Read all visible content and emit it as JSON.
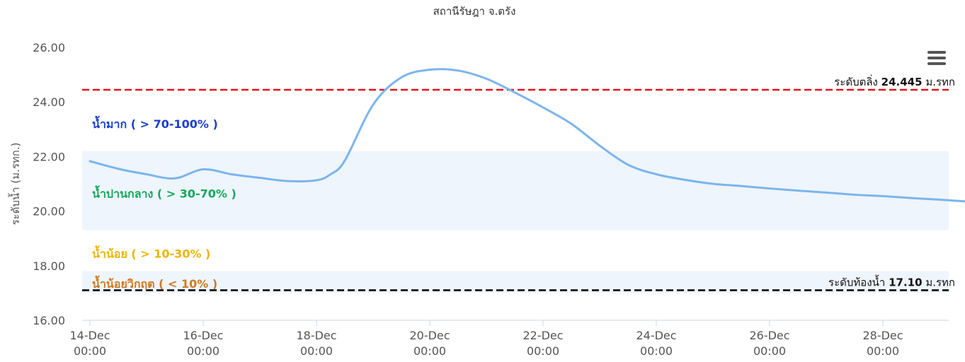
{
  "chart_data": {
    "type": "line",
    "title": "สถานีรัษฎา จ.ตรัง",
    "ylabel": "ระดับน้ำ (ม.รทก.)",
    "xlabel": "",
    "ylim": [
      16,
      26
    ],
    "yticks": [
      "16.00",
      "18.00",
      "20.00",
      "22.00",
      "24.00",
      "26.00"
    ],
    "xlim": [
      "2023-12-14 00:00",
      "2023-12-29 12:00"
    ],
    "xticks": [
      {
        "date": "2023-12-14 00:00",
        "line1": "14-Dec",
        "line2": "00:00"
      },
      {
        "date": "2023-12-16 00:00",
        "line1": "16-Dec",
        "line2": "00:00"
      },
      {
        "date": "2023-12-18 00:00",
        "line1": "18-Dec",
        "line2": "00:00"
      },
      {
        "date": "2023-12-20 00:00",
        "line1": "20-Dec",
        "line2": "00:00"
      },
      {
        "date": "2023-12-22 00:00",
        "line1": "22-Dec",
        "line2": "00:00"
      },
      {
        "date": "2023-12-24 00:00",
        "line1": "24-Dec",
        "line2": "00:00"
      },
      {
        "date": "2023-12-26 00:00",
        "line1": "26-Dec",
        "line2": "00:00"
      },
      {
        "date": "2023-12-28 00:00",
        "line1": "28-Dec",
        "line2": "00:00"
      }
    ],
    "grid": false,
    "series": [
      {
        "name": "",
        "color": "#7cb5ec",
        "x": [
          "2023-12-14 00:00",
          "2023-12-14 12:00",
          "2023-12-15 00:00",
          "2023-12-15 12:00",
          "2023-12-16 00:00",
          "2023-12-16 12:00",
          "2023-12-17 00:00",
          "2023-12-17 12:00",
          "2023-12-18 00:00",
          "2023-12-18 06:00",
          "2023-12-18 12:00",
          "2023-12-19 00:00",
          "2023-12-19 12:00",
          "2023-12-20 00:00",
          "2023-12-20 12:00",
          "2023-12-21 00:00",
          "2023-12-21 12:00",
          "2023-12-22 00:00",
          "2023-12-22 12:00",
          "2023-12-23 00:00",
          "2023-12-23 12:00",
          "2023-12-24 00:00",
          "2023-12-24 12:00",
          "2023-12-25 00:00",
          "2023-12-25 12:00",
          "2023-12-26 00:00",
          "2023-12-26 12:00",
          "2023-12-27 00:00",
          "2023-12-27 12:00",
          "2023-12-28 00:00",
          "2023-12-28 12:00",
          "2023-12-29 00:00",
          "2023-12-29 12:00"
        ],
        "values": [
          21.83,
          21.55,
          21.35,
          21.2,
          21.53,
          21.35,
          21.22,
          21.1,
          21.13,
          21.35,
          21.85,
          23.9,
          24.9,
          25.18,
          25.15,
          24.85,
          24.35,
          23.8,
          23.2,
          22.4,
          21.7,
          21.35,
          21.15,
          21.0,
          20.92,
          20.83,
          20.75,
          20.68,
          20.6,
          20.55,
          20.48,
          20.42,
          20.35
        ]
      }
    ],
    "bands": [
      {
        "from": 19.3,
        "to": 22.2,
        "color": "#eef5fc"
      },
      {
        "from": 17.0,
        "to": 17.8,
        "color": "#eef5fc"
      }
    ],
    "zones": [
      {
        "label": "น้ำมาก ( > 70-100% )",
        "y": 23.2,
        "color": "#1a3fd1"
      },
      {
        "label": "น้ำปานกลาง ( > 30-70% )",
        "y": 20.65,
        "color": "#15a85a"
      },
      {
        "label": "น้ำน้อย ( > 10-30% )",
        "y": 18.45,
        "color": "#f0b400"
      },
      {
        "label": "น้ำน้อยวิกฤต ( < 10% )",
        "y": 17.35,
        "color": "#d07a20"
      }
    ],
    "reference_lines": [
      {
        "prefix": "ระดับตลิ่ง",
        "value": "24.445",
        "value_num": 24.445,
        "unit": "ม.รทก",
        "color": "#e8121b"
      },
      {
        "prefix": "ระดับท้องน้ำ",
        "value": "17.10",
        "value_num": 17.1,
        "unit": "ม.รทก",
        "color": "#000000"
      }
    ]
  },
  "menu": {
    "icon": "hamburger-menu-icon"
  }
}
